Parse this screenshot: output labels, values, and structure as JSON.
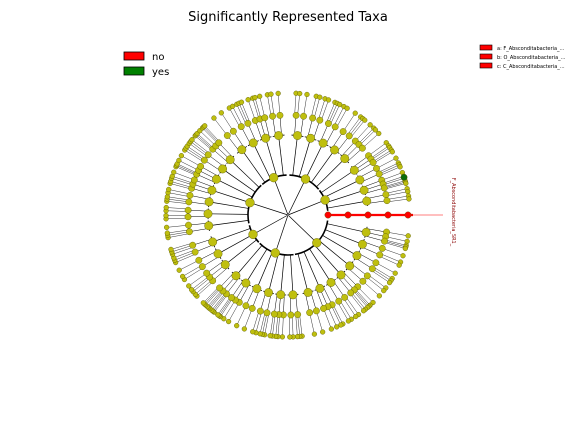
{
  "title": "Significantly Represented Taxa",
  "legend": {
    "items": [
      {
        "label": "no",
        "color": "#ff0000"
      },
      {
        "label": "yes",
        "color": "#008000"
      }
    ]
  },
  "clade_legend": [
    {
      "label": "a: F_Absconditabacteria_...",
      "color": "#ff0000"
    },
    {
      "label": "b: O_Absconditabacteria_...",
      "color": "#ff0000"
    },
    {
      "label": "c: C_Absconditabacteria_...",
      "color": "#ff0000"
    }
  ],
  "clade_label": "F_Absconditabacteria_SR1_",
  "highlight_nodes": [
    "a",
    "b",
    "c"
  ],
  "colors": {
    "node_fill": "#bfbf0f",
    "node_stroke": "#555500",
    "highlight": "#ff0000",
    "enriched": "#0a6b0a",
    "branch": "#000000"
  }
}
